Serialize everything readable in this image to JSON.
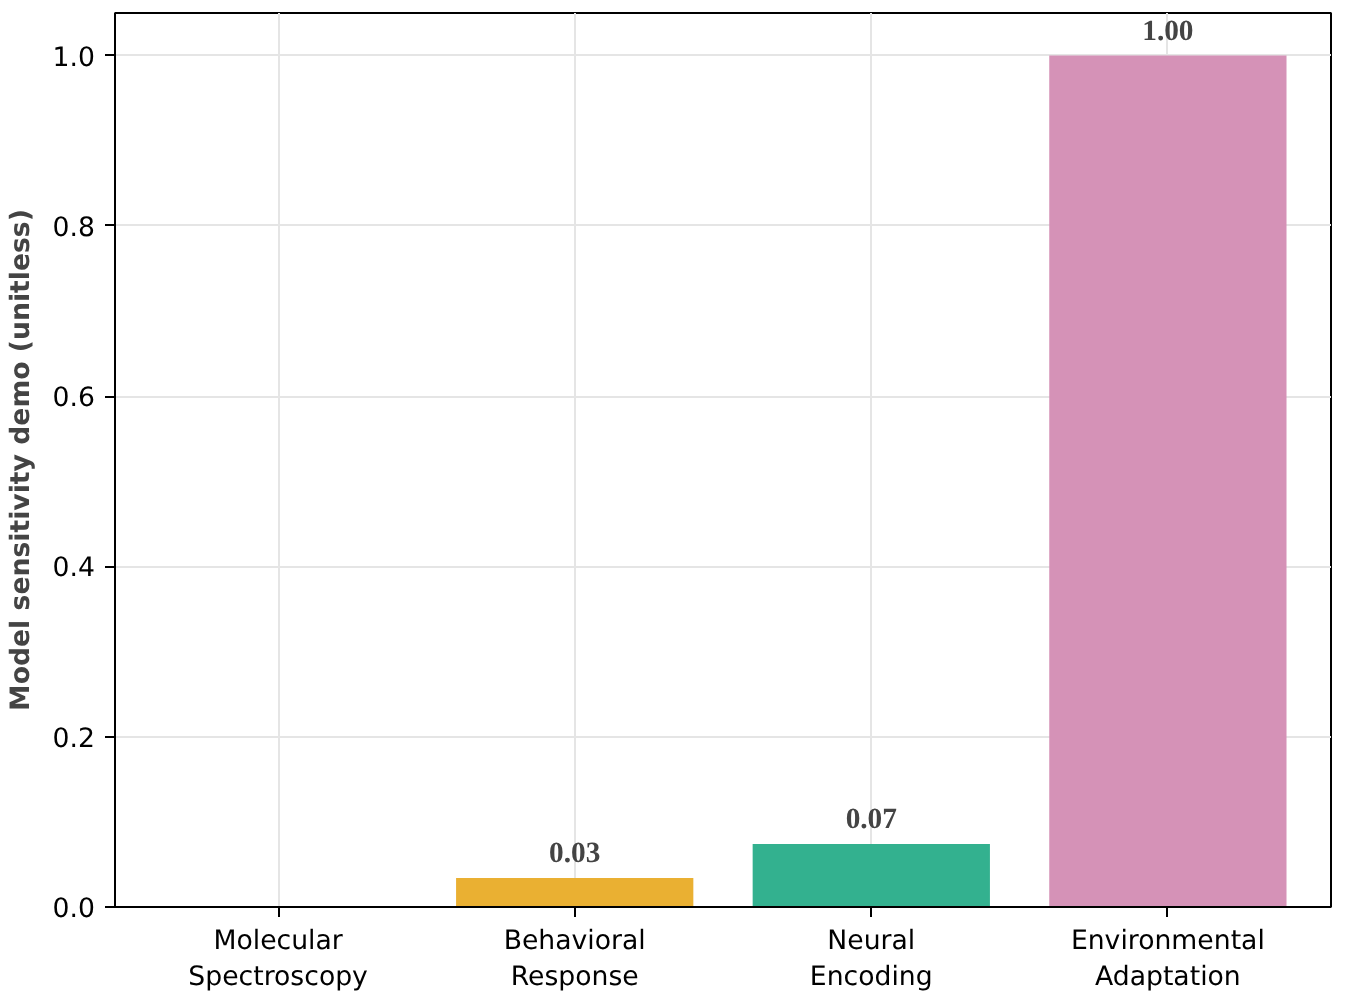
{
  "chart_data": {
    "type": "bar",
    "ylabel": "Model sensitivity demo (unitless)",
    "categories": [
      "Molecular\nSpectroscopy",
      "Behavioral\nResponse",
      "Neural\nEncoding",
      "Environmental\nAdaptation"
    ],
    "values": [
      0,
      0.034,
      0.074,
      1.0
    ],
    "colors": [
      "#3b8fc6",
      "#eab032",
      "#33b18f",
      "#d592b7"
    ],
    "value_labels": [
      null,
      "0.03",
      "0.07",
      "1.00"
    ],
    "ylim": [
      0,
      1.05
    ],
    "yticks": [
      {
        "value": 0,
        "label": "0.0"
      },
      {
        "value": 0.2,
        "label": "0.2"
      },
      {
        "value": 0.4,
        "label": "0.4"
      },
      {
        "value": 0.6,
        "label": "0.6"
      },
      {
        "value": 0.8,
        "label": "0.8"
      },
      {
        "value": 1.0,
        "label": "1.0"
      }
    ],
    "grid": true
  }
}
